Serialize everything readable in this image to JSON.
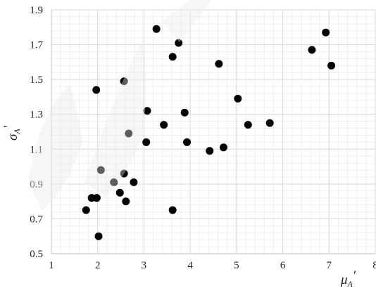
{
  "chart_data": {
    "type": "scatter",
    "title": "",
    "xlabel": {
      "base": "μ",
      "sub": "A",
      "prime": "'"
    },
    "ylabel": {
      "base": "σ",
      "sub": "A",
      "prime": "'"
    },
    "xlim": [
      1,
      8
    ],
    "ylim": [
      0.5,
      1.9
    ],
    "x_ticks": [
      1,
      2,
      3,
      4,
      5,
      6,
      7,
      8
    ],
    "x_tick_labels": [
      "1",
      "2",
      "3",
      "4",
      "5",
      "6",
      "7",
      "8"
    ],
    "y_ticks": [
      0.5,
      0.7,
      0.9,
      1.1,
      1.3,
      1.5,
      1.7,
      1.9
    ],
    "y_tick_labels": [
      "0.5",
      "0.7",
      "0.9",
      "1.1",
      "1.3",
      "1.5",
      "1.7",
      "1.9"
    ],
    "grid": true,
    "minor_grid": true,
    "x_minor_step": 0.2,
    "y_minor_step": 0.04,
    "legend": "none",
    "point_color": "#000000",
    "grid_color": "#d9d9d9",
    "minor_grid_color": "#efefef",
    "points": [
      {
        "x": 1.75,
        "y": 0.75
      },
      {
        "x": 1.87,
        "y": 0.82
      },
      {
        "x": 1.98,
        "y": 0.82
      },
      {
        "x": 1.97,
        "y": 1.44
      },
      {
        "x": 2.02,
        "y": 0.6
      },
      {
        "x": 2.07,
        "y": 0.98
      },
      {
        "x": 2.35,
        "y": 0.91
      },
      {
        "x": 2.48,
        "y": 0.85
      },
      {
        "x": 2.57,
        "y": 0.96
      },
      {
        "x": 2.61,
        "y": 0.8
      },
      {
        "x": 2.57,
        "y": 1.49
      },
      {
        "x": 2.67,
        "y": 1.19
      },
      {
        "x": 2.78,
        "y": 0.91
      },
      {
        "x": 3.05,
        "y": 1.14
      },
      {
        "x": 3.07,
        "y": 1.32
      },
      {
        "x": 3.27,
        "y": 1.79
      },
      {
        "x": 3.43,
        "y": 1.24
      },
      {
        "x": 3.62,
        "y": 0.75
      },
      {
        "x": 3.62,
        "y": 1.63
      },
      {
        "x": 3.75,
        "y": 1.71
      },
      {
        "x": 3.88,
        "y": 1.31
      },
      {
        "x": 3.93,
        "y": 1.14
      },
      {
        "x": 4.42,
        "y": 1.09
      },
      {
        "x": 4.62,
        "y": 1.59
      },
      {
        "x": 4.72,
        "y": 1.11
      },
      {
        "x": 5.03,
        "y": 1.39
      },
      {
        "x": 5.25,
        "y": 1.24
      },
      {
        "x": 5.72,
        "y": 1.25
      },
      {
        "x": 6.63,
        "y": 1.67
      },
      {
        "x": 6.93,
        "y": 1.77
      },
      {
        "x": 7.05,
        "y": 1.58
      }
    ]
  }
}
